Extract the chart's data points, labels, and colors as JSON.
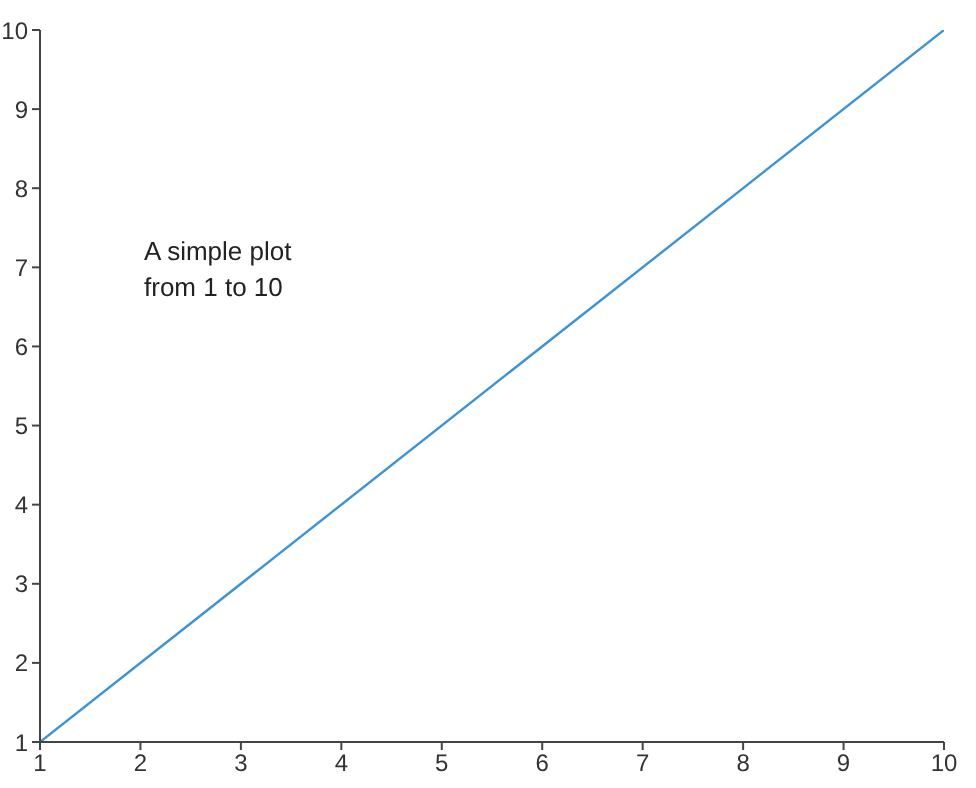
{
  "chart_data": {
    "type": "line",
    "x": [
      1,
      10
    ],
    "series": [
      {
        "color": "#3f93d2",
        "values": [
          1,
          10
        ]
      }
    ],
    "xlim": [
      1,
      10
    ],
    "xticks": [
      1,
      2,
      3,
      4,
      5,
      6,
      7,
      8,
      9,
      10
    ],
    "ylim": [
      1,
      10
    ],
    "yticks": [
      1,
      2,
      3,
      4,
      5,
      6,
      7,
      8,
      9,
      10
    ],
    "annotations": [
      "A simple plot\nfrom 1 to 10"
    ],
    "grid": false,
    "legend": false,
    "marker": "none",
    "line_style": "solid"
  }
}
